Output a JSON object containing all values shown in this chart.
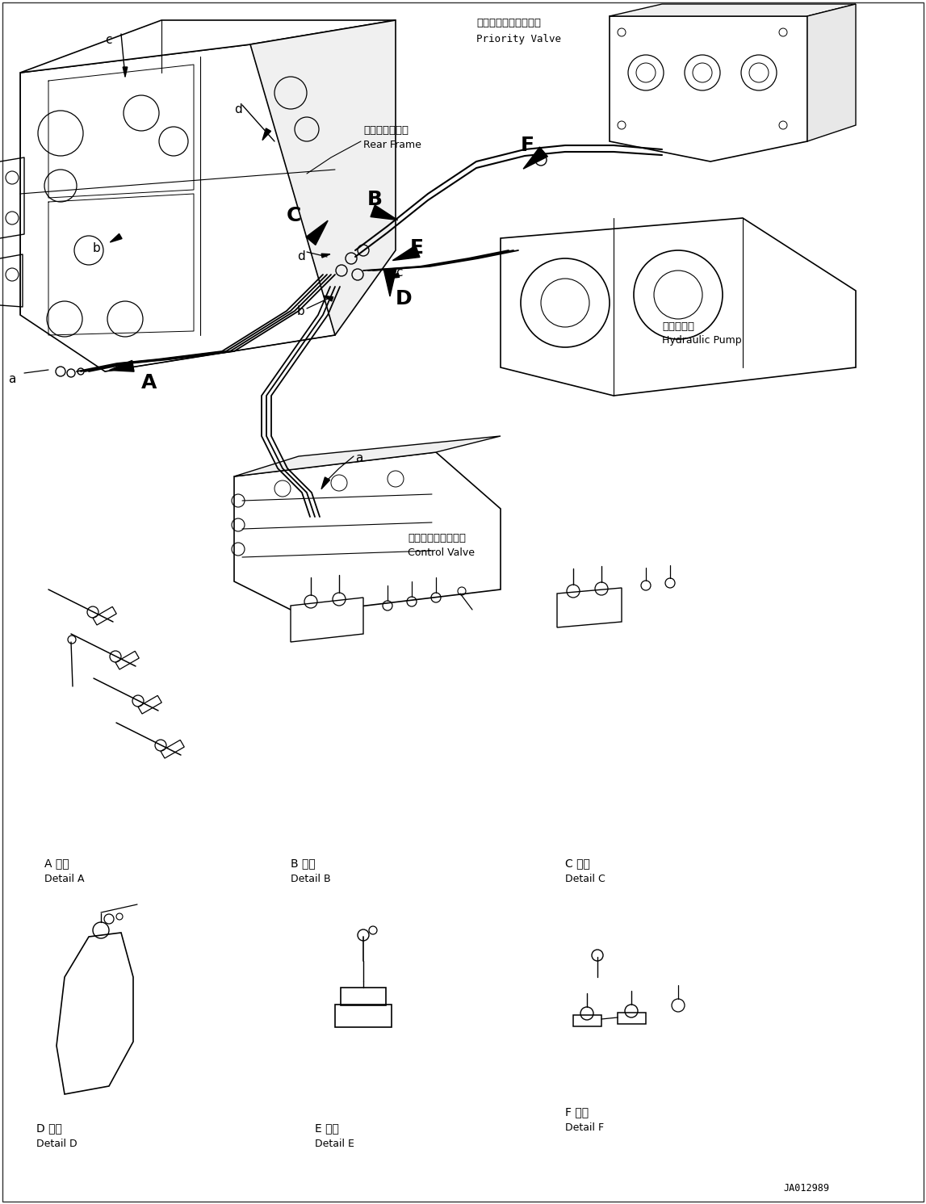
{
  "bg_color": "#ffffff",
  "lc": "#000000",
  "fig_width": 11.47,
  "fig_height": 14.91,
  "dpi": 100,
  "labels": {
    "priority_valve_jp": "プライオリティバルブ",
    "priority_valve_en": "Priority Valve",
    "rear_frame_jp": "リヤーフレーム",
    "rear_frame_en": "Rear Frame",
    "hydraulic_pump_jp": "油圧ポンプ",
    "hydraulic_pump_en": "Hydraulic Pump",
    "control_valve_jp": "コントロールバルブ",
    "control_valve_en": "Control Valve",
    "detail_A_jp": "A 詳細",
    "detail_A_en": "Detail A",
    "detail_B_jp": "B 詳細",
    "detail_B_en": "Detail B",
    "detail_C_jp": "C 詳細",
    "detail_C_en": "Detail C",
    "detail_D_jp": "D 詳細",
    "detail_D_en": "Detail D",
    "detail_E_jp": "E 詳細",
    "detail_E_en": "Detail E",
    "detail_F_jp": "F 詳細",
    "detail_F_en": "Detail F",
    "doc_number": "JA012989"
  },
  "font_sizes": {
    "jp_label": 9.5,
    "en_label": 9.0,
    "callout_large": 18,
    "callout_small": 11,
    "detail_jp": 10,
    "detail_en": 9,
    "doc": 8.5
  }
}
